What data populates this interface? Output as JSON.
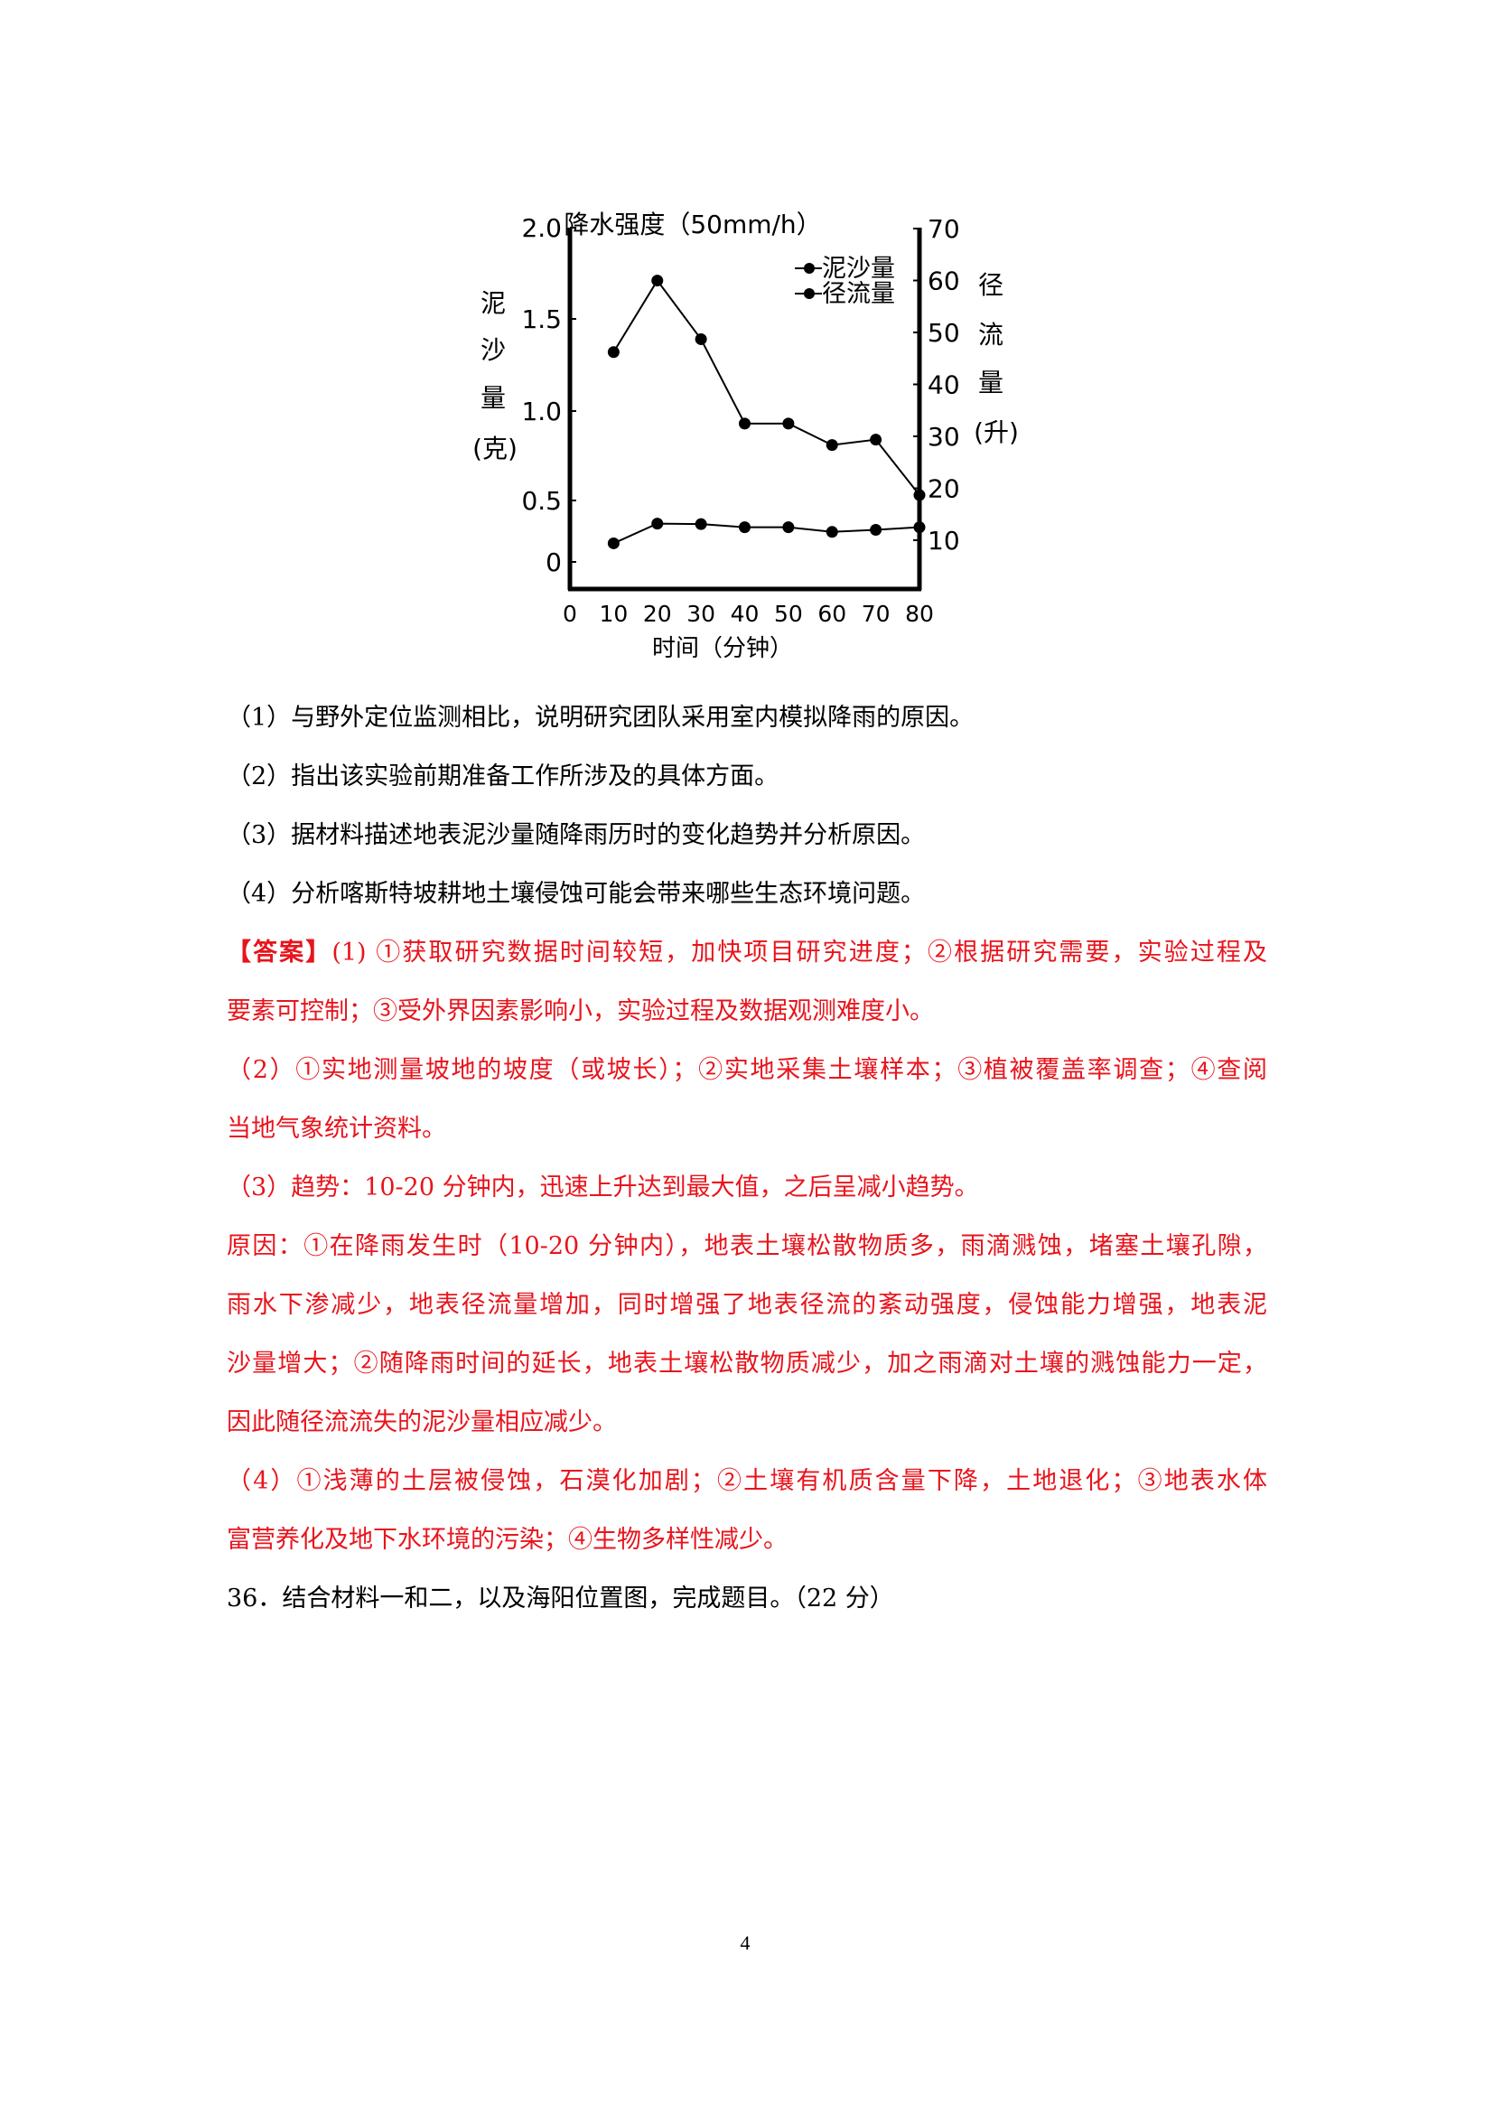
{
  "chart_data": {
    "type": "line",
    "title": "降水强度（50mm/h）",
    "xlabel": "时间（分钟）",
    "ylabel_left": [
      "泥",
      "沙",
      "量",
      "(克)"
    ],
    "ylabel_right": [
      "径",
      "流",
      "量",
      "(升)"
    ],
    "x_ticks": [
      "0",
      "10",
      "20",
      "30",
      "40",
      "50",
      "60",
      "70",
      "80"
    ],
    "x": [
      10,
      20,
      30,
      40,
      50,
      60,
      70,
      80
    ],
    "left_ticks": [
      "2.0",
      "1.5",
      "1.0",
      "0.5",
      "0"
    ],
    "right_ticks": [
      "70",
      "60",
      "50",
      "40",
      "30",
      "20",
      "10"
    ],
    "xlim": [
      0,
      80
    ],
    "ylim_left": [
      0,
      2.0
    ],
    "ylim_right": [
      10,
      70
    ],
    "grid": false,
    "legend_placement": "top-right",
    "series": [
      {
        "name": "泥沙量",
        "axis": "left",
        "values": [
          1.32,
          1.71,
          1.39,
          0.93,
          0.93,
          0.81,
          0.84,
          0.53
        ]
      },
      {
        "name": "径流量",
        "axis": "right",
        "values": [
          9.4,
          13.2,
          13.1,
          12.5,
          12.5,
          11.6,
          12.0,
          12.5
        ]
      }
    ],
    "color": "#000000"
  },
  "lines": [
    {
      "text": "（1）与野外定位监测相比，说明研究团队采用室内模拟降雨的原因。"
    },
    {
      "text": "（2）指出该实验前期准备工作所涉及的具体方面。"
    },
    {
      "text": "（3）据材料描述地表泥沙量随降雨历时的变化趋势并分析原因。"
    },
    {
      "text": "（4）分析喀斯特坡耕地土壤侵蚀可能会带来哪些生态环境问题。"
    },
    {
      "prefix": "【答案】",
      "text": "(1) ①获取研究数据时间较短，加快项目研究进度；②根据研究需要，实验过程及"
    },
    {
      "text": "要素可控制；③受外界因素影响小，实验过程及数据观测难度小。"
    },
    {
      "text": "（2）①实地测量坡地的坡度（或坡长）；②实地采集土壤样本；③植被覆盖率调查；④查阅"
    },
    {
      "text": "当地气象统计资料。"
    },
    {
      "text": "（3）趋势：10-20 分钟内，迅速上升达到最大值，之后呈减小趋势。"
    },
    {
      "text": "原因：①在降雨发生时（10-20 分钟内），地表土壤松散物质多，雨滴溅蚀，堵塞土壤孔隙，"
    },
    {
      "text": "雨水下渗减少，地表径流量增加，同时增强了地表径流的紊动强度，侵蚀能力增强，地表泥"
    },
    {
      "text": "沙量增大；②随降雨时间的延长，地表土壤松散物质减少，加之雨滴对土壤的溅蚀能力一定，"
    },
    {
      "text": "因此随径流流失的泥沙量相应减少。"
    },
    {
      "text": "（4）①浅薄的土层被侵蚀，石漠化加剧；②土壤有机质含量下降，土地退化；③地表水体"
    },
    {
      "text": "富营养化及地下水环境的污染；④生物多样性减少。"
    },
    {
      "text": "36．结合材料一和二，以及海阳位置图，完成题目。（22 分）"
    }
  ],
  "colors": {
    "answer": "#e8141c",
    "text": "#000000"
  },
  "page_number": "4"
}
